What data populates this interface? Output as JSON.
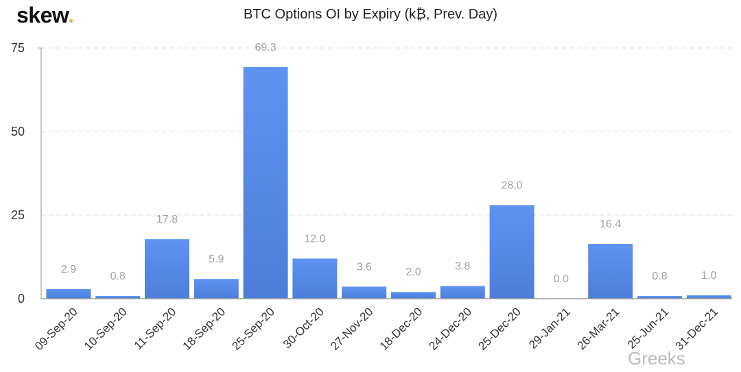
{
  "logo": {
    "text": "skew",
    "dot": "."
  },
  "watermark": "Greeks",
  "chart_data": {
    "type": "bar",
    "title": "BTC Options OI by Expiry (k₿, Prev. Day)",
    "xlabel": "",
    "ylabel": "",
    "ylim": [
      0,
      75
    ],
    "yticks": [
      0,
      25,
      50,
      75
    ],
    "grid": true,
    "categories": [
      "09-Sep-20",
      "10-Sep-20",
      "11-Sep-20",
      "18-Sep-20",
      "25-Sep-20",
      "30-Oct-20",
      "27-Nov-20",
      "18-Dec-20",
      "24-Dec-20",
      "25-Dec-20",
      "29-Jan-21",
      "26-Mar-21",
      "25-Jun-21",
      "31-Dec-21"
    ],
    "values": [
      2.9,
      0.8,
      17.8,
      5.9,
      69.3,
      12.0,
      3.6,
      2.0,
      3.8,
      28.0,
      0.0,
      16.4,
      0.8,
      1.0
    ],
    "labels": [
      "2.9",
      "0.8",
      "17.8",
      "5.9",
      "69.3",
      "12.0",
      "3.6",
      "2.0",
      "3.8",
      "28.0",
      "0.0",
      "16.4",
      "0.8",
      "1.0"
    ],
    "colors": {
      "bar": "#5b8ff0",
      "bar_bottom": "#4f7fdc",
      "label": "#a0a0a0"
    }
  }
}
